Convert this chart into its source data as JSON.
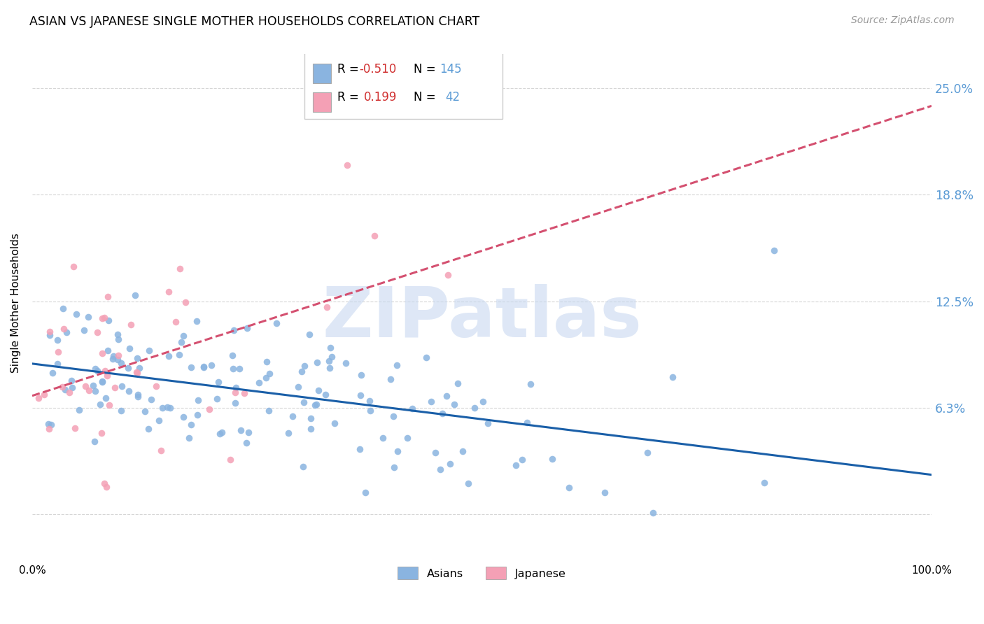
{
  "title": "ASIAN VS JAPANESE SINGLE MOTHER HOUSEHOLDS CORRELATION CHART",
  "source": "Source: ZipAtlas.com",
  "ylabel": "Single Mother Households",
  "asian_color": "#8ab4e0",
  "japanese_color": "#f4a0b5",
  "asian_line_color": "#1a5fa8",
  "japanese_line_color": "#d45070",
  "asian_R": -0.51,
  "asian_N": 145,
  "japanese_R": 0.199,
  "japanese_N": 42,
  "watermark": "ZIPatlas",
  "watermark_color": "#c8d8f0",
  "xmin": 0.0,
  "xmax": 1.0,
  "ymin": -0.022,
  "ymax": 0.27,
  "ytick_vals": [
    0.0,
    0.0625,
    0.125,
    0.1875,
    0.25
  ],
  "ytick_labels": [
    "",
    "6.3%",
    "12.5%",
    "18.8%",
    "25.0%"
  ],
  "tick_color": "#5b9bd5",
  "grid_color": "#cccccc",
  "title_fontsize": 12.5,
  "source_fontsize": 10,
  "background_color": "#ffffff"
}
